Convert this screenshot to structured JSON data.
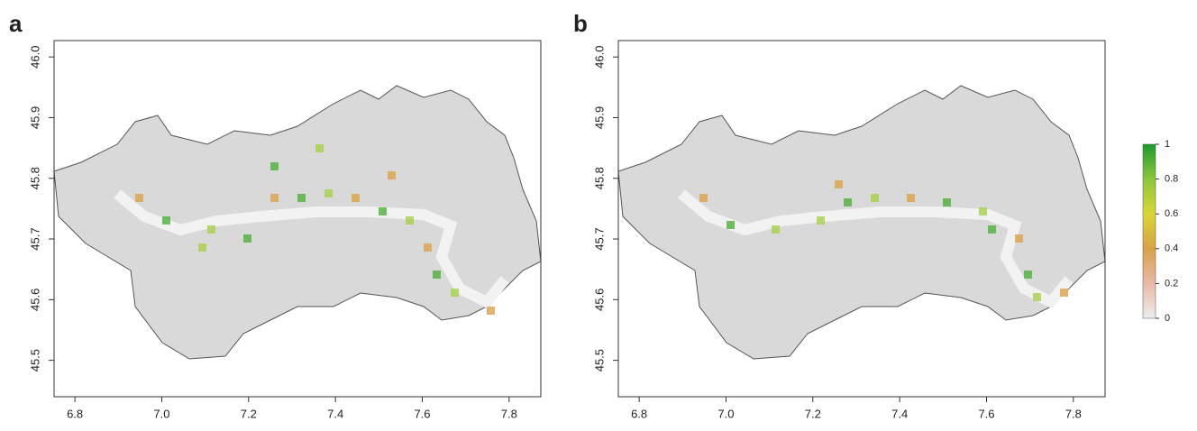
{
  "panels": [
    {
      "label": "a",
      "xlim": [
        6.752,
        7.873
      ],
      "ylim": [
        45.44,
        46.027
      ],
      "xticks": [
        6.8,
        {
          "value": 7,
          "label": "7.0"
        },
        7.2,
        7.4,
        7.6,
        7.8
      ],
      "yticks": [
        45.5,
        45.6,
        45.7,
        45.8,
        45.9,
        {
          "value": 46,
          "label": "46.0"
        }
      ]
    },
    {
      "label": "b",
      "xlim": [
        6.752,
        7.873
      ],
      "ylim": [
        45.44,
        46.027
      ],
      "xticks": [
        6.8,
        {
          "value": 7,
          "label": "7.0"
        },
        7.2,
        7.4,
        7.6,
        7.8
      ],
      "yticks": [
        45.5,
        45.6,
        45.7,
        45.8,
        45.9,
        {
          "value": 46,
          "label": "46.0"
        }
      ]
    }
  ],
  "colorbar": {
    "lim": [
      0,
      1
    ],
    "ticks": [
      0,
      0.2,
      0.4,
      0.6,
      0.8,
      1
    ],
    "colors": [
      "#eeeeee",
      "#e8b9a8",
      "#d9a24a",
      "#d8d635",
      "#8cc63e",
      "#1d9a2a"
    ]
  }
}
